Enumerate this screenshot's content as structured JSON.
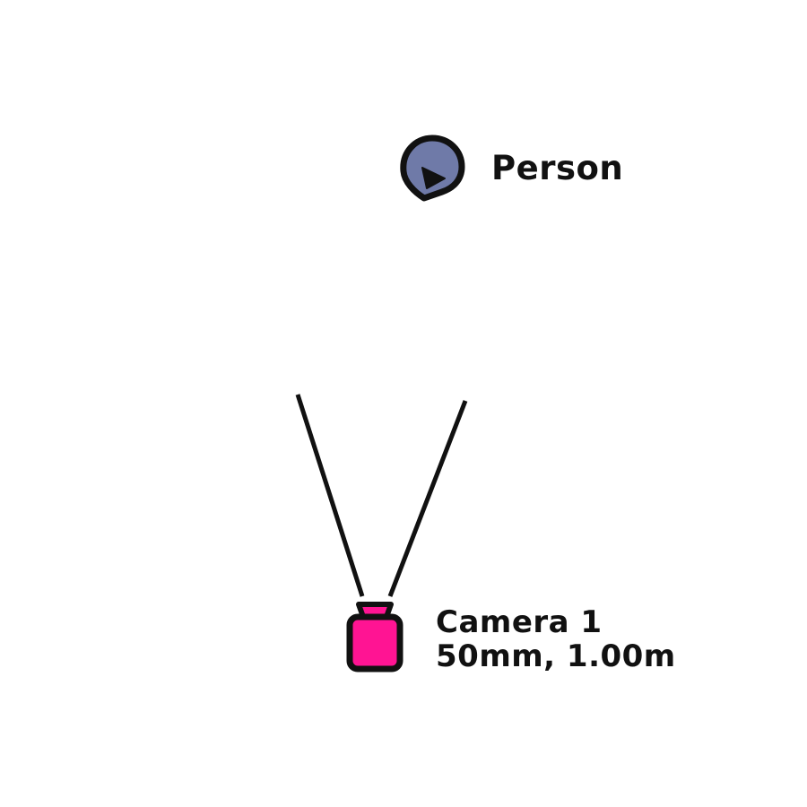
{
  "person": {
    "label": "Person",
    "icon": "person-marker-icon",
    "color": "#6F7AA8"
  },
  "camera": {
    "name": "Camera 1",
    "spec": "50mm, 1.00m",
    "icon": "camera-icon",
    "color": "#FF1493"
  },
  "colors": {
    "outline": "#111111",
    "background": "#FFFFFF"
  }
}
